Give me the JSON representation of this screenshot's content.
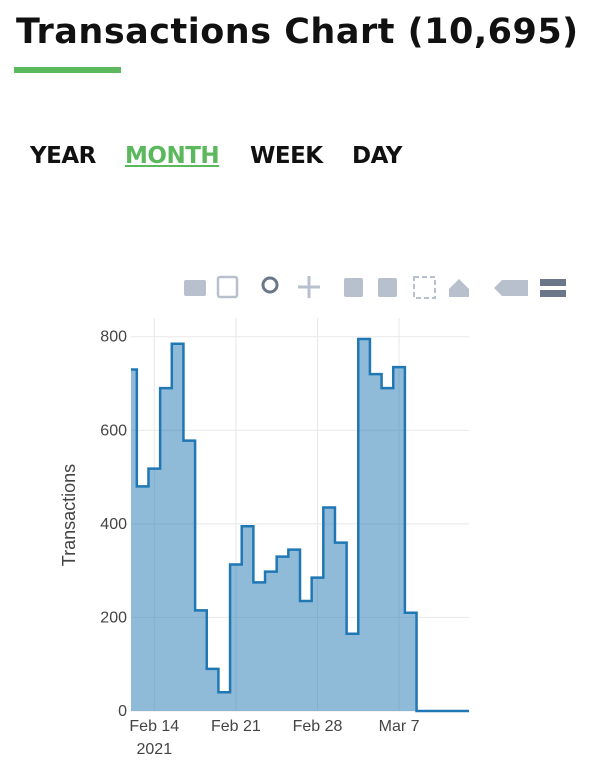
{
  "header": {
    "title": "Transactions Chart (10,695)"
  },
  "tabs": [
    "YEAR",
    "MONTH",
    "WEEK",
    "DAY"
  ],
  "active_tab": 1,
  "chart_data": {
    "type": "step-area",
    "y_label": "Transactions",
    "x": [
      "2021-02-12",
      "2021-02-13",
      "2021-02-14",
      "2021-02-15",
      "2021-02-16",
      "2021-02-17",
      "2021-02-18",
      "2021-02-19",
      "2021-02-20",
      "2021-02-21",
      "2021-02-22",
      "2021-02-23",
      "2021-02-24",
      "2021-02-25",
      "2021-02-26",
      "2021-02-27",
      "2021-02-28",
      "2021-03-01",
      "2021-03-02",
      "2021-03-03",
      "2021-03-04",
      "2021-03-05",
      "2021-03-06",
      "2021-03-07",
      "2021-03-08",
      "2021-03-09"
    ],
    "values": [
      730,
      480,
      518,
      690,
      785,
      578,
      215,
      90,
      40,
      313,
      395,
      275,
      298,
      330,
      345,
      235,
      285,
      435,
      360,
      165,
      795,
      720,
      690,
      735,
      210,
      0
    ],
    "color": "#1f77b4",
    "xlim": [
      "2021-02-12",
      "2021-03-13"
    ],
    "xticks": [
      {
        "value": "2021-02-14",
        "label": "Feb 14"
      },
      {
        "value": "2021-02-21",
        "label": "Feb 21"
      },
      {
        "value": "2021-02-28",
        "label": "Feb 28"
      },
      {
        "value": "2021-03-07",
        "label": "Mar 7"
      }
    ],
    "x_year_label": "2021",
    "ylim": [
      0,
      840
    ],
    "yticks": [
      0,
      200,
      400,
      600,
      800
    ],
    "grid": true
  }
}
